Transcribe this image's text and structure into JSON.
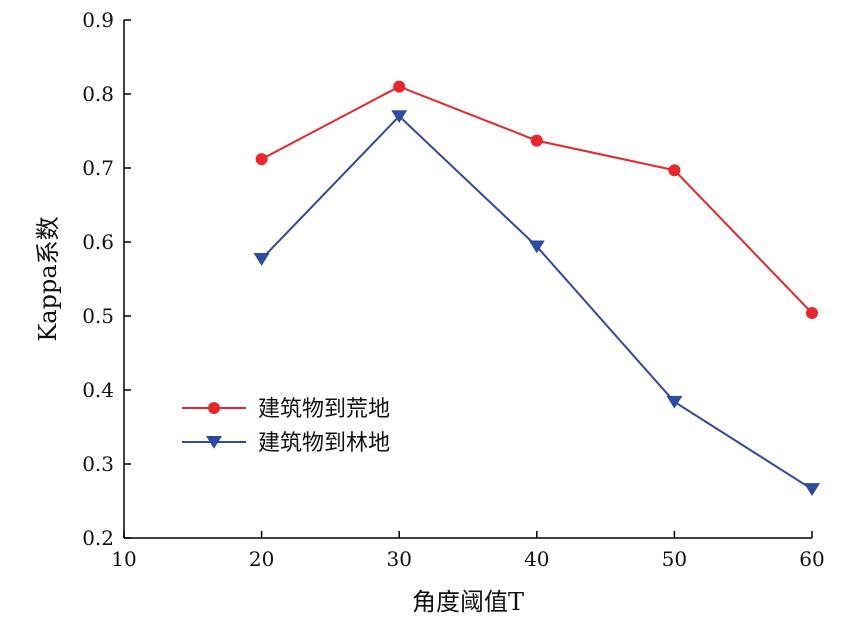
{
  "chart_data": {
    "type": "line",
    "xlabel": "角度阈值T",
    "ylabel": "Kappa系数",
    "xlim": [
      10,
      60
    ],
    "ylim": [
      0.2,
      0.9
    ],
    "xticks": [
      "10",
      "20",
      "30",
      "40",
      "50",
      "60"
    ],
    "yticks": [
      "0.2",
      "0.3",
      "0.4",
      "0.5",
      "0.6",
      "0.7",
      "0.8",
      "0.9"
    ],
    "grid": false,
    "legend_position": "lower-left",
    "x": [
      20,
      30,
      40,
      50,
      60
    ],
    "series": [
      {
        "name": "建筑物到荒地",
        "values": [
          0.712,
          0.81,
          0.737,
          0.697,
          0.504
        ],
        "color": "#e8262b",
        "marker": "circle"
      },
      {
        "name": "建筑物到林地",
        "values": [
          0.577,
          0.77,
          0.594,
          0.384,
          0.266
        ],
        "color": "#2e4aa3",
        "marker": "triangle-down"
      }
    ]
  }
}
